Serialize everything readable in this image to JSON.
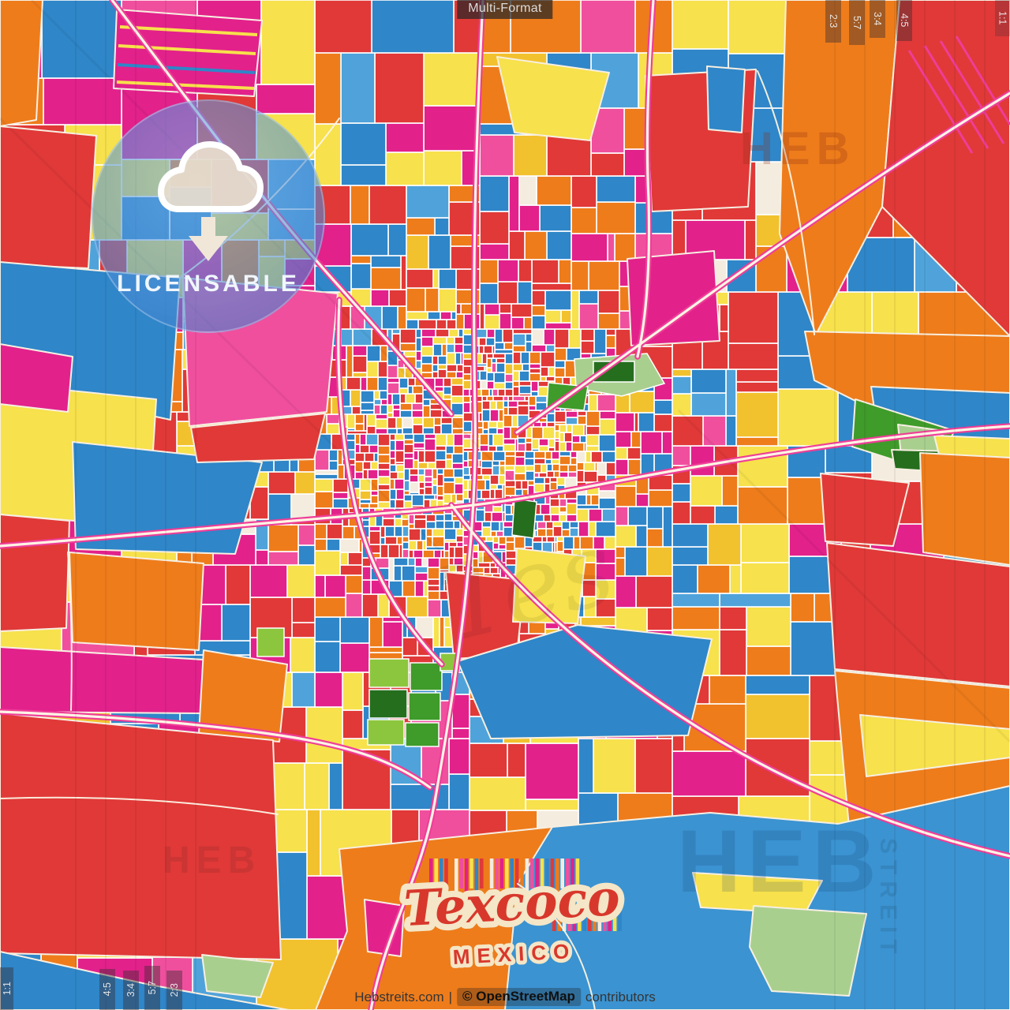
{
  "title_bar": {
    "label": "Multi-Format"
  },
  "ratio_marks": {
    "top_right": [
      "2:3",
      "5:7",
      "3:4",
      "4:5"
    ],
    "top_right_corner": "1:1",
    "bottom_left_corner": "1:1",
    "bottom_left": [
      "4:5",
      "3:4",
      "5:7",
      "2:3"
    ]
  },
  "license_badge": {
    "label": "LICENSABLE",
    "icon": "cloud-download-icon"
  },
  "place_stamp": {
    "name": "Texcoco",
    "country": "MEXICO"
  },
  "footer": {
    "site": "Hebstreits.com",
    "separator": "|",
    "attribution_bold": "© OpenStreetMap",
    "attribution_rest": "contributors"
  },
  "watermarks": {
    "brand": "HEB",
    "brand_vertical": "STREIT",
    "script_fragment": "Tes"
  },
  "map": {
    "region": "Texcoco, Mexico — crazy colorful street map",
    "palette": {
      "red": "#e03938",
      "blue": "#2f86c8",
      "lake": "#3b93d1",
      "orange": "#ee7c1b",
      "yellow": "#f7e14c",
      "magenta": "#e2218b",
      "pink": "#f04f9e",
      "cyan": "#4fa3da",
      "gold": "#f2c12e",
      "cream": "#f4ecdf",
      "park_green": "#3f9b2a",
      "park_light": "#8cc63e",
      "park_dark": "#256e1e",
      "sage": "#a9cf8f",
      "road_pink": "#ef3d98",
      "road_white": "#fdf4e4"
    },
    "mosaic_weights": [
      [
        "red",
        23
      ],
      [
        "blue",
        20
      ],
      [
        "orange",
        17
      ],
      [
        "yellow",
        14
      ],
      [
        "magenta",
        13
      ],
      [
        "pink",
        4
      ],
      [
        "cyan",
        4
      ],
      [
        "gold",
        3
      ],
      [
        "cream",
        2
      ]
    ]
  }
}
